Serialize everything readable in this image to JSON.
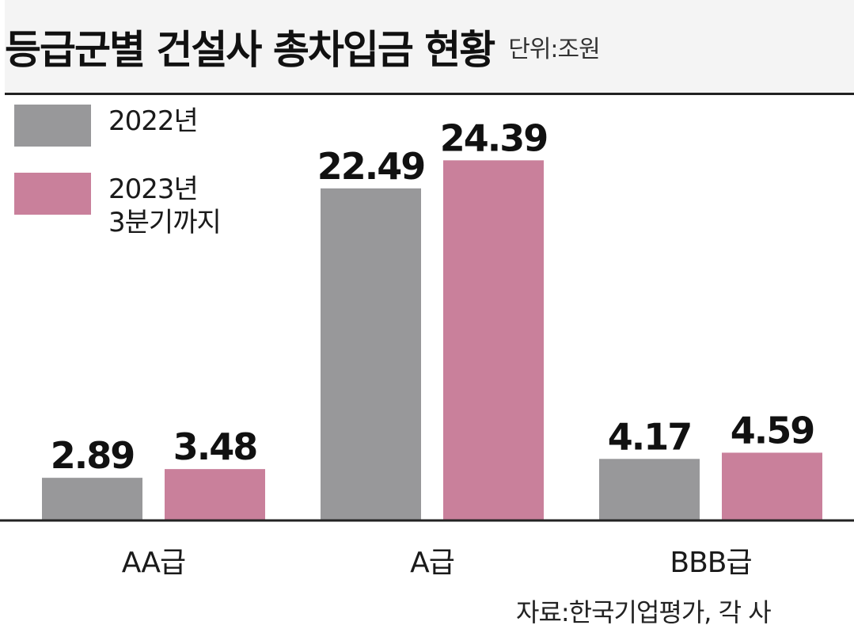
{
  "chart_data": {
    "type": "bar",
    "title": "등급군별 건설사 총차입금 현황",
    "unit": "단위:조원",
    "categories": [
      "AA급",
      "A급",
      "BBB급"
    ],
    "series": [
      {
        "name": "2022년",
        "color": "#98989a",
        "values": [
          2.89,
          22.49,
          4.17
        ]
      },
      {
        "name": "2023년\n3분기까지",
        "color": "#c9809b",
        "values": [
          3.48,
          24.39,
          4.59
        ]
      }
    ],
    "ylim": [
      0,
      30
    ],
    "grid": false,
    "legend_position": "top-left",
    "source": "자료:한국기업평가, 각 사"
  }
}
